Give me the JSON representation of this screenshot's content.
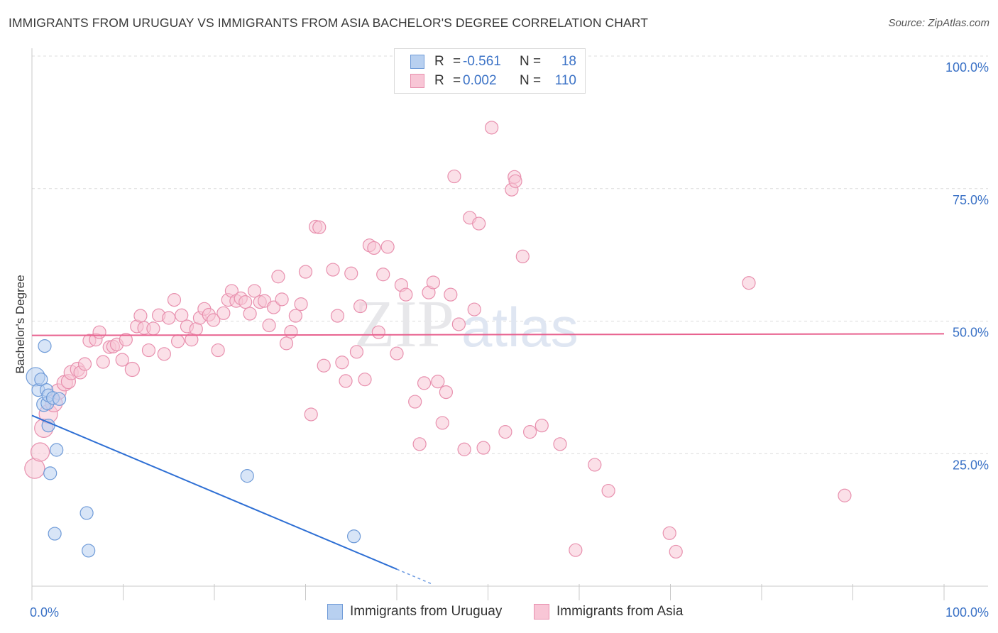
{
  "title": "IMMIGRANTS FROM URUGUAY VS IMMIGRANTS FROM ASIA BACHELOR'S DEGREE CORRELATION CHART",
  "source": "Source: ZipAtlas.com",
  "watermark": {
    "zip": "ZIP",
    "atlas": "atlas"
  },
  "colors": {
    "blue_fill": "#b8d0f0",
    "blue_stroke": "#6f9bd8",
    "blue_line": "#2e6fd4",
    "pink_fill": "#f8c6d6",
    "pink_stroke": "#e890ae",
    "pink_line": "#e8628f",
    "axis_label": "#3b72c6",
    "grid": "#dcdcdc"
  },
  "legend": {
    "rows": [
      {
        "r_label": "R =",
        "r_value": "-0.561",
        "n_label": "N =",
        "n_value": "18"
      },
      {
        "r_label": "R =",
        "r_value": "0.002",
        "n_label": "N =",
        "n_value": "110"
      }
    ]
  },
  "bottom_legend": {
    "uruguay": "Immigrants from Uruguay",
    "asia": "Immigrants from Asia"
  },
  "chart_data": {
    "type": "scatter",
    "title": "IMMIGRANTS FROM URUGUAY VS IMMIGRANTS FROM ASIA BACHELOR'S DEGREE CORRELATION CHART",
    "xlabel": "",
    "ylabel": "Bachelor's Degree",
    "xlim": [
      0,
      100
    ],
    "ylim": [
      0,
      100
    ],
    "x_tick_labels": [
      "0.0%",
      "100.0%"
    ],
    "y_ticks": [
      25,
      50,
      75,
      100
    ],
    "y_tick_labels": [
      "25.0%",
      "50.0%",
      "75.0%",
      "100.0%"
    ],
    "grid": true,
    "series": [
      {
        "name": "Immigrants from Uruguay",
        "R": -0.561,
        "N": 18,
        "trend": {
          "x0": 0,
          "y0": 32.2,
          "x1": 40,
          "y1": 3.2,
          "dash_to_x": 44
        },
        "points": [
          [
            0.4,
            39.5,
            13
          ],
          [
            0.7,
            37.0,
            9
          ],
          [
            1.0,
            39.0,
            9
          ],
          [
            1.3,
            34.3,
            10
          ],
          [
            1.4,
            45.3,
            9
          ],
          [
            1.6,
            37.0,
            9
          ],
          [
            1.7,
            34.5,
            9
          ],
          [
            1.8,
            36.0,
            9
          ],
          [
            1.8,
            30.3,
            9
          ],
          [
            2.0,
            21.3,
            9
          ],
          [
            2.3,
            35.5,
            9
          ],
          [
            2.5,
            9.9,
            9
          ],
          [
            2.7,
            25.7,
            9
          ],
          [
            3.0,
            35.3,
            9
          ],
          [
            6.0,
            13.8,
            9
          ],
          [
            6.2,
            6.7,
            9
          ],
          [
            23.6,
            20.8,
            9
          ],
          [
            35.3,
            9.4,
            9
          ]
        ]
      },
      {
        "name": "Immigrants from Asia",
        "R": 0.002,
        "N": 110,
        "trend": {
          "x0": 0,
          "y0": 47.3,
          "x1": 100,
          "y1": 47.6
        },
        "points": [
          [
            0.3,
            22.2,
            14
          ],
          [
            0.9,
            25.3,
            13
          ],
          [
            1.3,
            29.8,
            13
          ],
          [
            1.8,
            32.5,
            13
          ],
          [
            2.4,
            34.5,
            12
          ],
          [
            2.9,
            36.7,
            11
          ],
          [
            3.6,
            38.3,
            11
          ],
          [
            4.0,
            38.6,
            10
          ],
          [
            4.3,
            40.3,
            10
          ],
          [
            5.0,
            40.9,
            10
          ],
          [
            5.3,
            40.3,
            9
          ],
          [
            5.8,
            41.9,
            9
          ],
          [
            6.3,
            46.3,
            9
          ],
          [
            7.0,
            46.5,
            9
          ],
          [
            7.4,
            47.9,
            9
          ],
          [
            7.8,
            42.3,
            9
          ],
          [
            8.5,
            45.1,
            9
          ],
          [
            8.9,
            45.2,
            9
          ],
          [
            9.3,
            45.6,
            9
          ],
          [
            9.9,
            42.7,
            9
          ],
          [
            10.3,
            46.5,
            9
          ],
          [
            11.0,
            40.9,
            10
          ],
          [
            11.5,
            49.0,
            9
          ],
          [
            11.9,
            51.0,
            9
          ],
          [
            12.3,
            48.7,
            9
          ],
          [
            12.8,
            44.5,
            9
          ],
          [
            13.3,
            48.6,
            9
          ],
          [
            13.9,
            51.1,
            9
          ],
          [
            14.5,
            43.8,
            9
          ],
          [
            15.0,
            50.6,
            9
          ],
          [
            15.6,
            54.0,
            9
          ],
          [
            16.0,
            46.2,
            9
          ],
          [
            16.4,
            51.1,
            9
          ],
          [
            17.0,
            49.0,
            9
          ],
          [
            17.5,
            46.5,
            9
          ],
          [
            18.0,
            48.5,
            9
          ],
          [
            18.4,
            50.6,
            9
          ],
          [
            18.9,
            52.3,
            9
          ],
          [
            19.4,
            51.2,
            9
          ],
          [
            19.9,
            50.2,
            9
          ],
          [
            20.4,
            44.5,
            9
          ],
          [
            21.0,
            51.5,
            9
          ],
          [
            21.5,
            54.0,
            9
          ],
          [
            21.9,
            55.7,
            9
          ],
          [
            22.4,
            53.8,
            9
          ],
          [
            22.9,
            54.3,
            9
          ],
          [
            23.4,
            53.6,
            9
          ],
          [
            23.9,
            51.4,
            9
          ],
          [
            24.4,
            55.7,
            9
          ],
          [
            25.0,
            53.6,
            9
          ],
          [
            25.5,
            53.8,
            9
          ],
          [
            26.0,
            49.2,
            9
          ],
          [
            26.5,
            52.6,
            9
          ],
          [
            27.0,
            58.4,
            9
          ],
          [
            27.4,
            54.1,
            9
          ],
          [
            27.9,
            45.8,
            9
          ],
          [
            28.4,
            48.0,
            9
          ],
          [
            28.9,
            51.0,
            9
          ],
          [
            29.5,
            53.2,
            9
          ],
          [
            30.0,
            59.3,
            9
          ],
          [
            30.6,
            32.4,
            9
          ],
          [
            31.1,
            67.8,
            9
          ],
          [
            31.5,
            67.7,
            9
          ],
          [
            32.0,
            41.6,
            9
          ],
          [
            33.0,
            59.7,
            9
          ],
          [
            33.5,
            51.0,
            9
          ],
          [
            34.0,
            42.2,
            9
          ],
          [
            34.4,
            38.7,
            9
          ],
          [
            35.0,
            59.0,
            9
          ],
          [
            35.6,
            44.2,
            9
          ],
          [
            36.0,
            52.8,
            9
          ],
          [
            36.5,
            39.0,
            9
          ],
          [
            37.0,
            64.3,
            9
          ],
          [
            37.5,
            63.8,
            9
          ],
          [
            38.0,
            47.9,
            9
          ],
          [
            38.5,
            58.8,
            9
          ],
          [
            39.0,
            64.0,
            9
          ],
          [
            40.0,
            43.9,
            9
          ],
          [
            40.5,
            56.8,
            9
          ],
          [
            41.0,
            55.0,
            9
          ],
          [
            42.0,
            34.8,
            9
          ],
          [
            42.5,
            26.8,
            9
          ],
          [
            43.0,
            38.3,
            9
          ],
          [
            43.5,
            55.4,
            9
          ],
          [
            44.0,
            57.3,
            9
          ],
          [
            44.5,
            38.6,
            9
          ],
          [
            45.0,
            30.8,
            9
          ],
          [
            45.4,
            36.6,
            9
          ],
          [
            45.9,
            55.0,
            9
          ],
          [
            46.3,
            77.3,
            9
          ],
          [
            46.8,
            49.4,
            9
          ],
          [
            47.4,
            25.8,
            9
          ],
          [
            48.0,
            69.5,
            9
          ],
          [
            48.5,
            52.2,
            9
          ],
          [
            49.0,
            68.4,
            9
          ],
          [
            49.5,
            26.1,
            9
          ],
          [
            50.4,
            86.5,
            9
          ],
          [
            51.9,
            29.1,
            9
          ],
          [
            52.6,
            74.8,
            9
          ],
          [
            52.9,
            77.2,
            9
          ],
          [
            53.0,
            76.4,
            9
          ],
          [
            53.8,
            62.2,
            9
          ],
          [
            54.6,
            29.1,
            9
          ],
          [
            55.9,
            30.3,
            9
          ],
          [
            57.9,
            26.8,
            9
          ],
          [
            59.6,
            6.8,
            9
          ],
          [
            61.7,
            22.9,
            9
          ],
          [
            63.2,
            18.0,
            9
          ],
          [
            69.9,
            10.0,
            9
          ],
          [
            70.6,
            6.5,
            9
          ],
          [
            78.6,
            57.2,
            9
          ],
          [
            89.1,
            17.1,
            9
          ]
        ]
      }
    ]
  }
}
